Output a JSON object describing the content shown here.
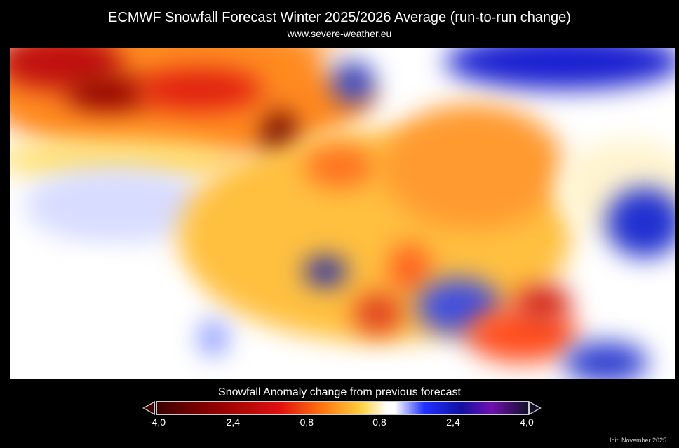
{
  "title": "ECMWF Snowfall Forecast   Winter 2025/2026 Average (run-to-run change)",
  "subtitle": "www.severe-weather.eu",
  "map": {
    "region": "Europe",
    "variable": "Snowfall anomaly change"
  },
  "colorbar": {
    "title": "Snowfall Anomaly change from previous forecast",
    "ticks": [
      "-4,0",
      "-2,4",
      "-0,8",
      "0,8",
      "2,4",
      "4,0"
    ],
    "range": [
      -4.0,
      4.0
    ],
    "colors": {
      "min": "#3a0000",
      "neg": "#e01010",
      "mid_neg": "#ffd040",
      "zero": "#ffffff",
      "pos": "#2030ff",
      "max": "#10102a"
    }
  },
  "init": "Init: November 2025"
}
